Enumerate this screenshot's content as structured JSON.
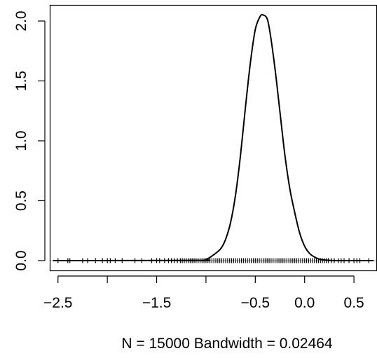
{
  "chart_data": {
    "type": "line",
    "title": "",
    "xlabel": "N = 15000   Bandwidth = 0.02464",
    "ylabel": "",
    "xlim": [
      -2.58,
      0.73
    ],
    "ylim": [
      0,
      2.1
    ],
    "x_ticks": [
      {
        "value": -2.5,
        "label": "−2.5"
      },
      {
        "value": -2.0,
        "label": ""
      },
      {
        "value": -1.5,
        "label": "−1.5"
      },
      {
        "value": -1.0,
        "label": ""
      },
      {
        "value": -0.5,
        "label": "−0.5"
      },
      {
        "value": 0.0,
        "label": "0.0"
      },
      {
        "value": 0.5,
        "label": "0.5"
      }
    ],
    "y_ticks": [
      {
        "value": 0.0,
        "label": "0.0"
      },
      {
        "value": 0.5,
        "label": "0.5"
      },
      {
        "value": 1.0,
        "label": "1.0"
      },
      {
        "value": 1.5,
        "label": "1.5"
      },
      {
        "value": 2.0,
        "label": "2.0"
      }
    ],
    "density": {
      "x": [
        -2.55,
        -1.1,
        -1.0,
        -0.92,
        -0.85,
        -0.8,
        -0.75,
        -0.7,
        -0.65,
        -0.6,
        -0.55,
        -0.5,
        -0.45,
        -0.42,
        -0.38,
        -0.35,
        -0.3,
        -0.25,
        -0.2,
        -0.15,
        -0.1,
        -0.05,
        0.0,
        0.05,
        0.1,
        0.15,
        0.2,
        0.25,
        0.35,
        0.7
      ],
      "y": [
        0.0,
        0.002,
        0.01,
        0.05,
        0.1,
        0.18,
        0.32,
        0.55,
        0.88,
        1.28,
        1.65,
        1.93,
        2.04,
        2.05,
        2.02,
        1.9,
        1.6,
        1.24,
        0.88,
        0.6,
        0.4,
        0.23,
        0.12,
        0.06,
        0.03,
        0.012,
        0.005,
        0.002,
        0.0,
        0.0
      ]
    },
    "rug": [
      -2.5,
      -2.4,
      -2.38,
      -2.25,
      -2.2,
      -2.12,
      -2.05,
      -2.0,
      -1.97,
      -1.92,
      -1.85,
      -1.72,
      -1.65,
      -1.55,
      -1.5,
      -1.47,
      -1.42,
      -1.38,
      -1.35,
      -1.32,
      -1.29,
      -1.26,
      -1.24,
      -1.22,
      -1.2,
      -1.18,
      -1.16,
      -1.14,
      -1.12,
      -1.1,
      -1.08,
      -1.06,
      -1.04,
      -1.02,
      -1.0,
      -0.98,
      -0.96,
      -0.94,
      -0.92,
      -0.9,
      -0.88,
      -0.86,
      -0.84,
      -0.82,
      -0.8,
      -0.78,
      -0.76,
      -0.74,
      -0.72,
      -0.7,
      -0.68,
      -0.66,
      -0.64,
      -0.62,
      -0.6,
      -0.58,
      -0.56,
      -0.54,
      -0.52,
      -0.5,
      -0.48,
      -0.46,
      -0.44,
      -0.42,
      -0.4,
      -0.38,
      -0.36,
      -0.34,
      -0.32,
      -0.3,
      -0.28,
      -0.26,
      -0.24,
      -0.22,
      -0.2,
      -0.18,
      -0.16,
      -0.14,
      -0.12,
      -0.1,
      -0.08,
      -0.06,
      -0.04,
      -0.02,
      0.0,
      0.02,
      0.04,
      0.06,
      0.08,
      0.1,
      0.12,
      0.14,
      0.16,
      0.18,
      0.2,
      0.22,
      0.24,
      0.27,
      0.3,
      0.34,
      0.37,
      0.4,
      0.45,
      0.5,
      0.53,
      0.56,
      0.65
    ],
    "zero_line_color": "#bebebe",
    "line_color": "#000000",
    "grid": false,
    "legend": "none"
  }
}
